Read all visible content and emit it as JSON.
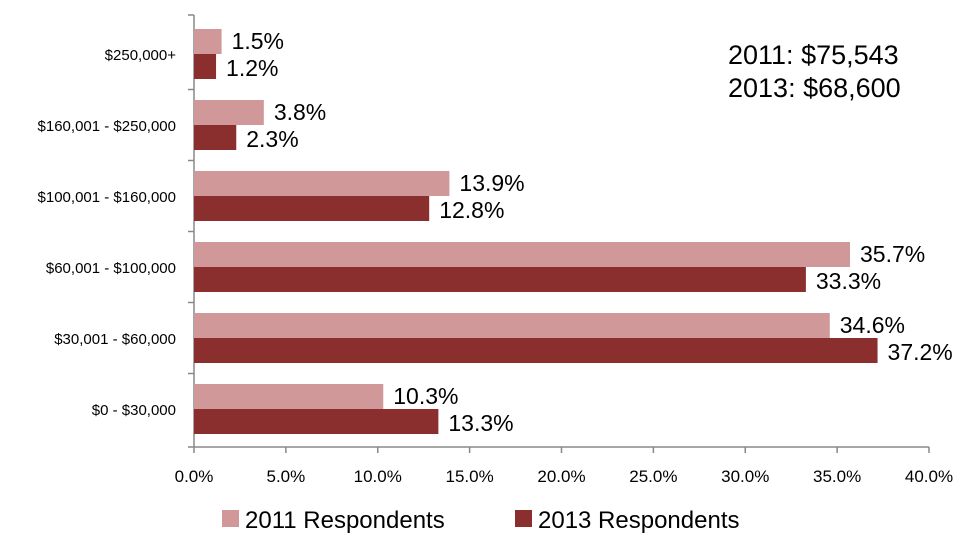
{
  "chart_data": {
    "type": "bar",
    "orientation": "horizontal",
    "categories": [
      "$250,000+",
      "$160,001 - $250,000",
      "$100,001 - $160,000",
      "$60,001 - $100,000",
      "$30,001 - $60,000",
      "$0 - $30,000"
    ],
    "series": [
      {
        "name": "2011 Respondents",
        "color": "#D09898",
        "values": [
          1.5,
          3.8,
          13.9,
          35.7,
          34.6,
          10.3
        ],
        "labels": [
          "1.5%",
          "3.8%",
          "13.9%",
          "35.7%",
          "34.6%",
          "10.3%"
        ]
      },
      {
        "name": "2013 Respondents",
        "color": "#8B2E2E",
        "values": [
          1.2,
          2.3,
          12.8,
          33.3,
          37.2,
          13.3
        ],
        "labels": [
          "1.2%",
          "2.3%",
          "12.8%",
          "33.3%",
          "37.2%",
          "13.3%"
        ]
      }
    ],
    "xlim": [
      0,
      40
    ],
    "x_ticks": [
      0,
      5,
      10,
      15,
      20,
      25,
      30,
      35,
      40
    ],
    "x_tick_labels": [
      "0.0%",
      "5.0%",
      "10.0%",
      "15.0%",
      "20.0%",
      "25.0%",
      "30.0%",
      "35.0%",
      "40.0%"
    ],
    "grid": false,
    "legend_position": "bottom",
    "annotations": [
      "2011: $75,543",
      "2013: $68,600"
    ],
    "title": "",
    "xlabel": "",
    "ylabel": ""
  }
}
